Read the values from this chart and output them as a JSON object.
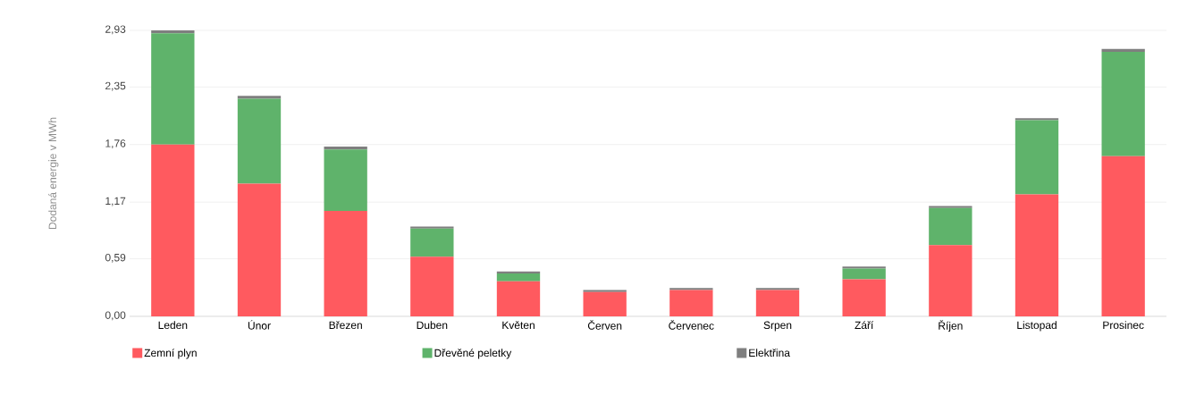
{
  "chart_data": {
    "type": "bar",
    "stacked": true,
    "ylabel": "Dodaná energie v MWh",
    "categories": [
      "Leden",
      "Únor",
      "Březen",
      "Duben",
      "Květen",
      "Červen",
      "Červenec",
      "Srpen",
      "Září",
      "Říjen",
      "Listopad",
      "Prosinec"
    ],
    "series": [
      {
        "name": "Zemní plyn",
        "color": "#ff5a5f",
        "values": [
          1.76,
          1.36,
          1.08,
          0.61,
          0.36,
          0.25,
          0.27,
          0.27,
          0.38,
          0.73,
          1.25,
          1.64
        ]
      },
      {
        "name": "Dřevěné peletky",
        "color": "#5fb36b",
        "values": [
          1.14,
          0.87,
          0.63,
          0.29,
          0.08,
          0,
          0,
          0,
          0.11,
          0.38,
          0.76,
          1.07
        ]
      },
      {
        "name": "Elektřina",
        "color": "#7f7f7f",
        "values": [
          0.03,
          0.03,
          0.03,
          0.02,
          0.02,
          0.02,
          0.02,
          0.02,
          0.02,
          0.02,
          0.02,
          0.03
        ]
      }
    ],
    "ylim": [
      0,
      2.93
    ],
    "yticks": [
      {
        "value": 0,
        "label": "0,00"
      },
      {
        "value": 0.59,
        "label": "0,59"
      },
      {
        "value": 1.17,
        "label": "1,17"
      },
      {
        "value": 1.76,
        "label": "1,76"
      },
      {
        "value": 2.35,
        "label": "2,35"
      },
      {
        "value": 2.93,
        "label": "2,93"
      }
    ],
    "grid": "y",
    "legend": "bottom"
  }
}
